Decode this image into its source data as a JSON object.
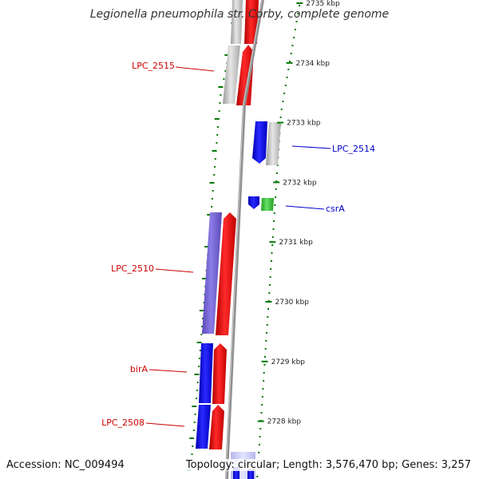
{
  "title": "Legionella pneumophila str. Corby, complete genome",
  "footer": {
    "accession": "Accession: NC_009494",
    "summary": "Topology: circular; Length: 3,576,470 bp; Genes: 3,257"
  },
  "colors": {
    "forward": "#ff0000",
    "reverse": "#0000ff",
    "pseudo": "#c0c0c0",
    "other": "#44c444",
    "operon": "#7a6ad0",
    "tick": "#007700",
    "backbone": "#999999"
  },
  "ticks": [
    {
      "label": "2735 kbp",
      "kbp": 2735
    },
    {
      "label": "2734 kbp",
      "kbp": 2734
    },
    {
      "label": "2733 kbp",
      "kbp": 2733
    },
    {
      "label": "2732 kbp",
      "kbp": 2732
    },
    {
      "label": "2731 kbp",
      "kbp": 2731
    },
    {
      "label": "2730 kbp",
      "kbp": 2730
    },
    {
      "label": "2729 kbp",
      "kbp": 2729
    },
    {
      "label": "2728 kbp",
      "kbp": 2728
    }
  ],
  "gene_labels": [
    {
      "name": "LPC_2515",
      "color": "#cc0000"
    },
    {
      "name": "LPC_2514",
      "color": "#0000cc"
    },
    {
      "name": "csrA",
      "color": "#0000cc"
    },
    {
      "name": "LPC_2510",
      "color": "#cc0000"
    },
    {
      "name": "birA",
      "color": "#cc0000"
    },
    {
      "name": "LPC_2508",
      "color": "#cc0000"
    }
  ]
}
